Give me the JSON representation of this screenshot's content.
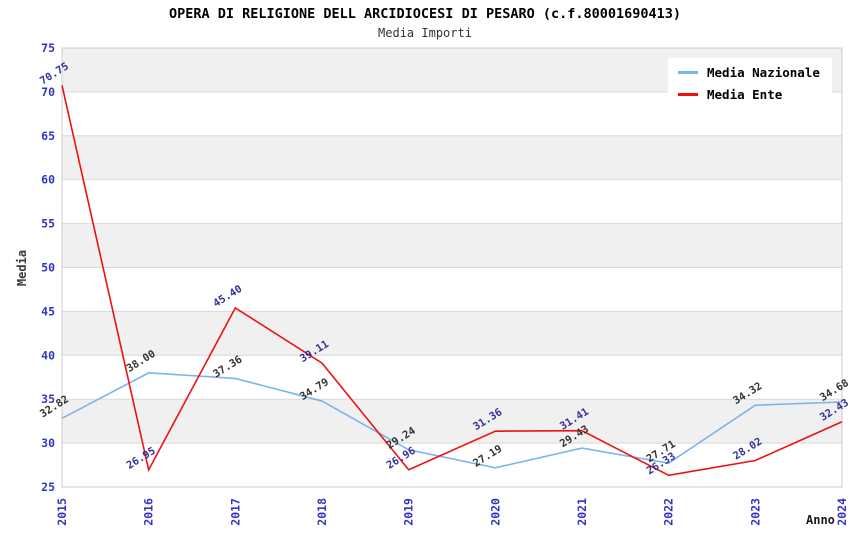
{
  "chart_data": {
    "type": "line",
    "title": "OPERA DI RELIGIONE DELL ARCIDIOCESI DI PESARO (c.f.80001690413)",
    "subtitle": "Media Importi",
    "xlabel": "Anno",
    "ylabel": "Media",
    "ylim": [
      25,
      75
    ],
    "ytick_step": 5,
    "yticks": [
      25,
      30,
      35,
      40,
      45,
      50,
      55,
      60,
      65,
      70,
      75
    ],
    "grid": "horizontal gridlines with alternating gray bands",
    "legend_position": "top-right",
    "categories": [
      "2015",
      "2016",
      "2017",
      "2018",
      "2019",
      "2020",
      "2021",
      "2022",
      "2023",
      "2024"
    ],
    "series": [
      {
        "name": "Media Nazionale",
        "color": "#7cb5ec",
        "label_color": "#333333",
        "values": [
          32.82,
          38.0,
          37.36,
          34.79,
          29.24,
          27.19,
          29.43,
          27.71,
          34.32,
          34.68
        ],
        "labels": [
          "32.82",
          "38.00",
          "37.36",
          "34.79",
          "29.24",
          "27.19",
          "29.43",
          "27.71",
          "34.32",
          "34.68"
        ]
      },
      {
        "name": "Media Ente",
        "color": "#ee1111",
        "label_color": "#333399",
        "values": [
          70.75,
          26.95,
          45.4,
          39.11,
          26.96,
          31.36,
          31.41,
          26.33,
          28.02,
          32.43
        ],
        "labels": [
          "70.75",
          "26.95",
          "45.40",
          "39.11",
          "26.96",
          "31.36",
          "31.41",
          "26.33",
          "28.02",
          "32.43"
        ]
      }
    ],
    "style_colors": {
      "axis_tick_label": "#3333cc",
      "band_gray": "#f0f0f0",
      "gridline": "#d9d9d9",
      "plot_border": "#cccccc",
      "background": "#ffffff"
    }
  }
}
